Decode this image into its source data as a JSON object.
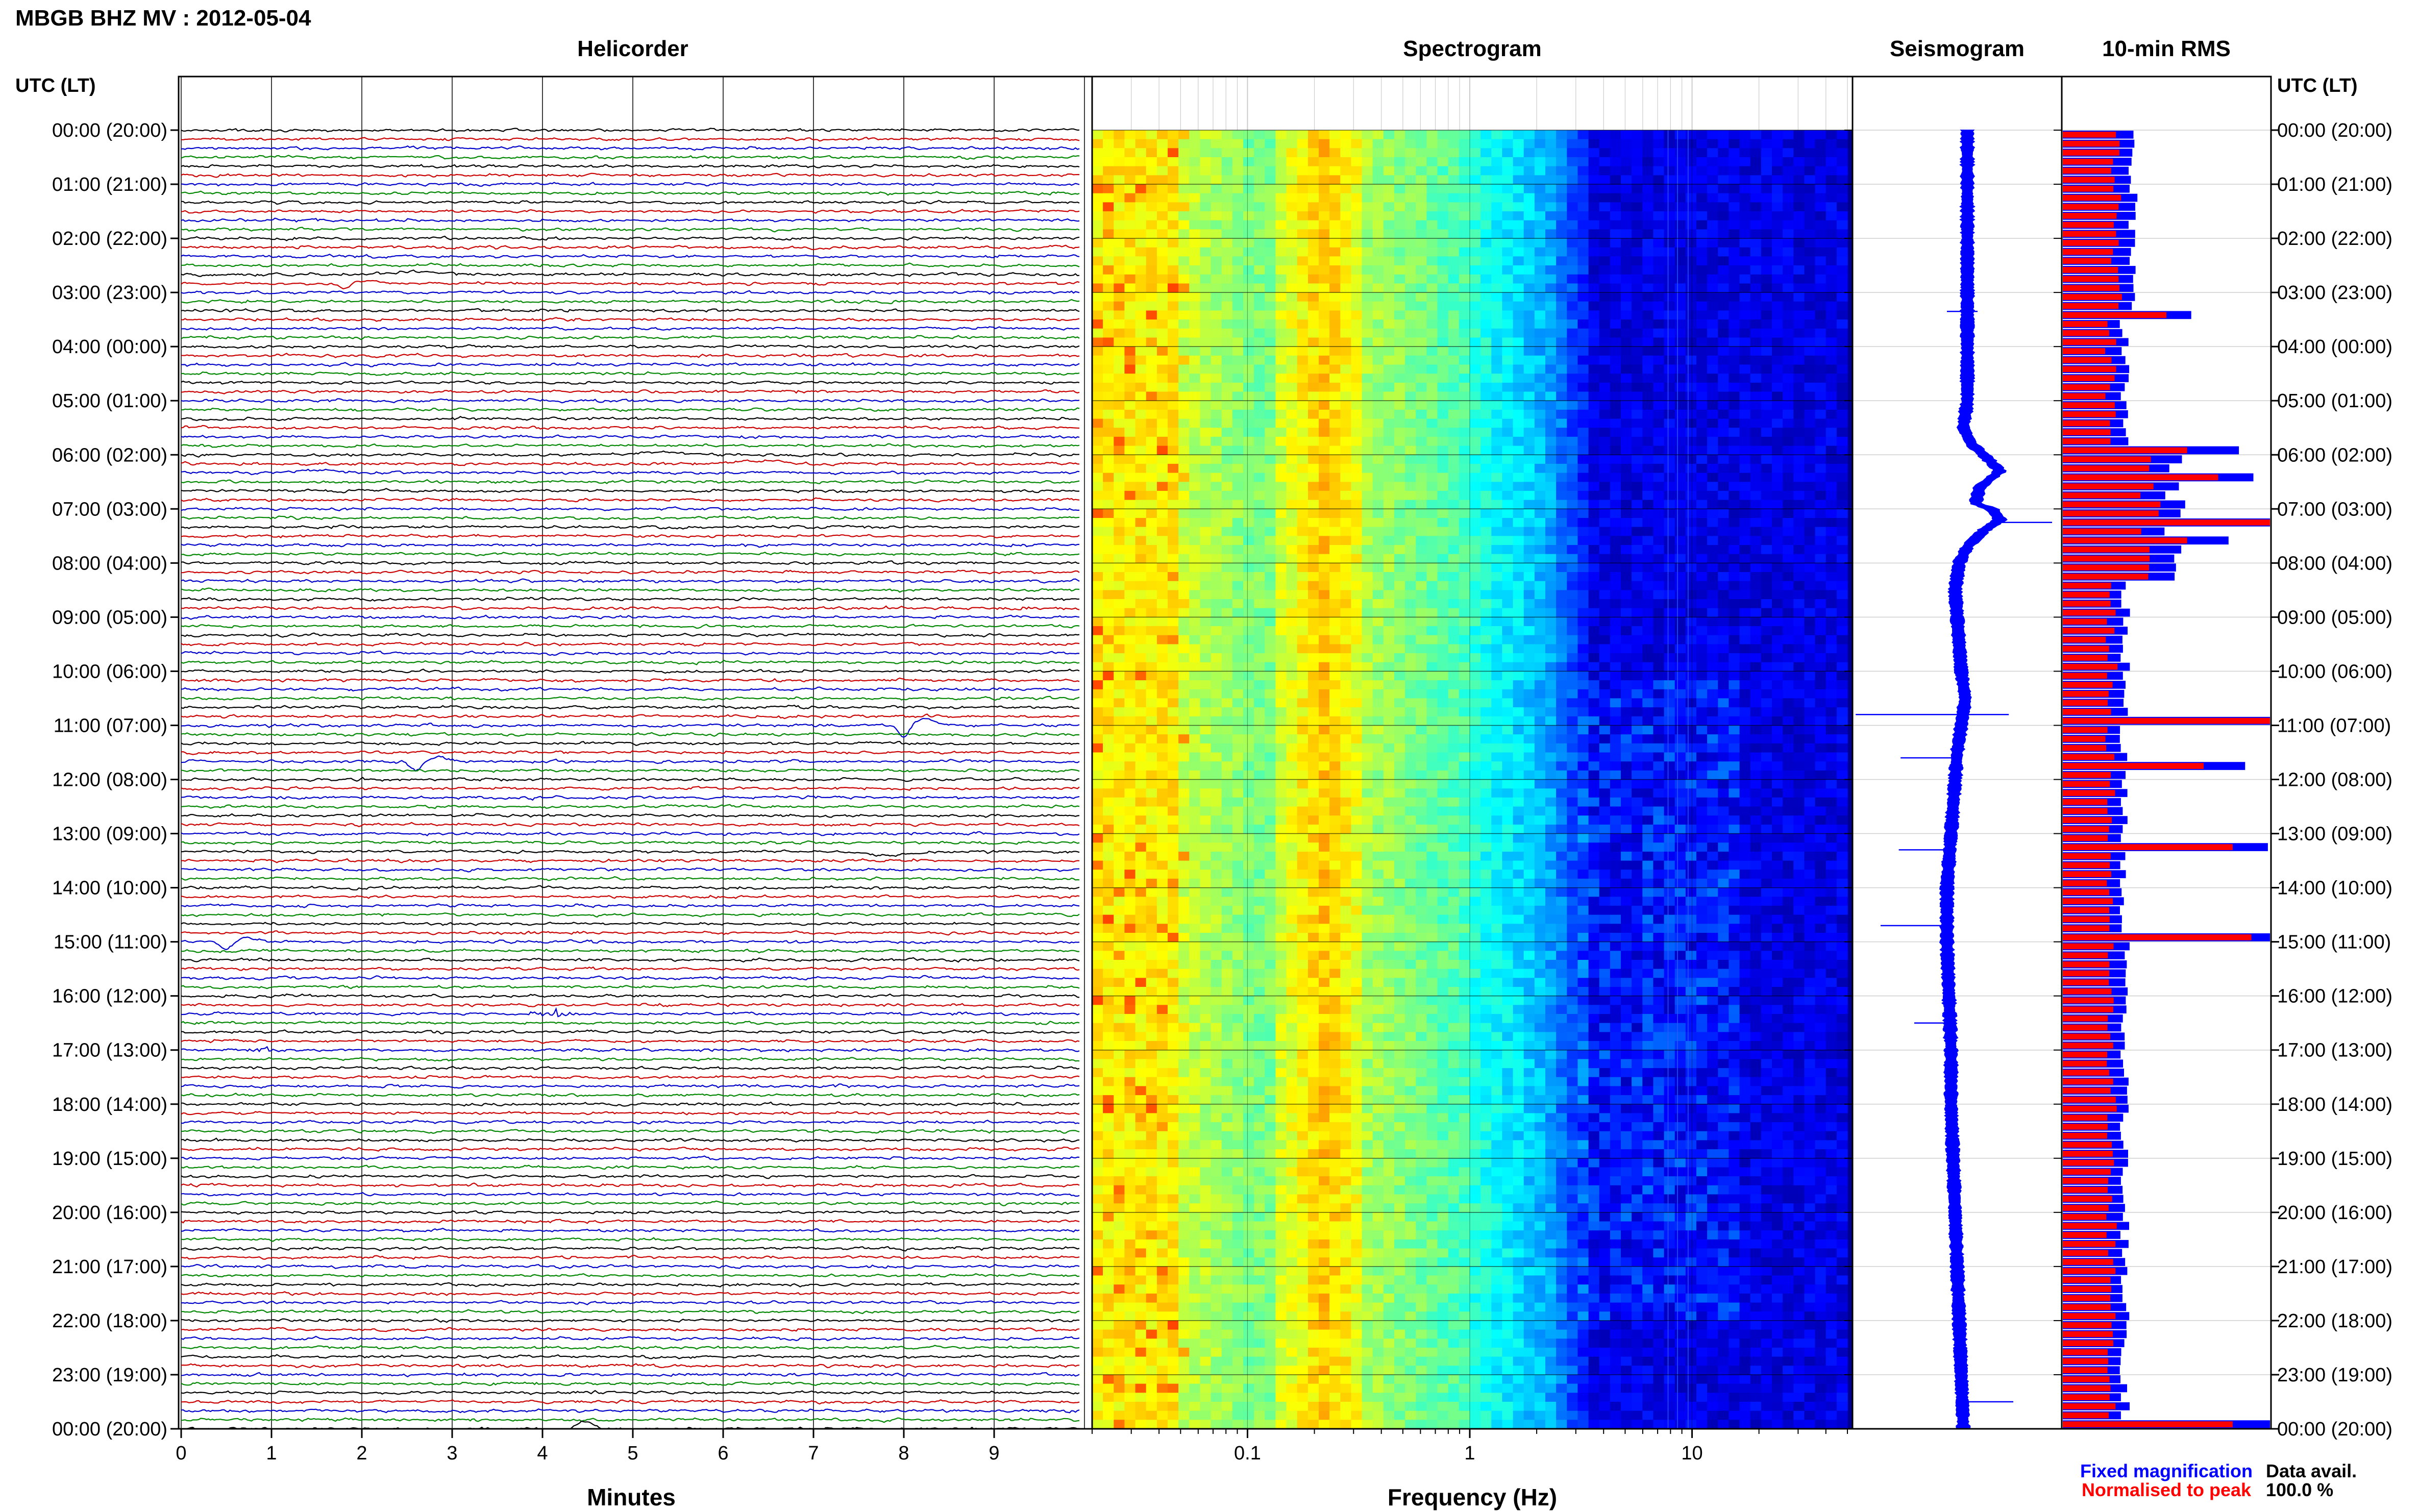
{
  "header": {
    "title": "MBGB BHZ MV : 2012-05-04",
    "left_axis_heading": "UTC (LT)",
    "right_axis_heading": "UTC (LT)"
  },
  "panels": {
    "helicorder": {
      "title": "Helicorder",
      "xlabel": "Minutes"
    },
    "spectrogram": {
      "title": "Spectrogram",
      "xlabel": "Frequency (Hz)"
    },
    "seismogram": {
      "title": "Seismogram"
    },
    "rms": {
      "title": "10-min RMS"
    }
  },
  "legend": {
    "fixed": "Fixed magnification",
    "normalised": "Normalised to peak",
    "fixed_color": "#0000ff",
    "normalised_color": "#ff0000",
    "data_avail_label": "Data avail.",
    "data_avail_value": "100.0 %"
  },
  "chart_data": {
    "type": "multi-panel seismic overview",
    "time_tick_labels": [
      "00:00 (20:00)",
      "01:00 (21:00)",
      "02:00 (22:00)",
      "03:00 (23:00)",
      "04:00 (00:00)",
      "05:00 (01:00)",
      "06:00 (02:00)",
      "07:00 (03:00)",
      "08:00 (04:00)",
      "09:00 (05:00)",
      "10:00 (06:00)",
      "11:00 (07:00)",
      "12:00 (08:00)",
      "13:00 (09:00)",
      "14:00 (10:00)",
      "15:00 (11:00)",
      "16:00 (12:00)",
      "17:00 (13:00)",
      "18:00 (14:00)",
      "19:00 (15:00)",
      "20:00 (16:00)",
      "21:00 (17:00)",
      "22:00 (18:00)",
      "23:00 (19:00)",
      "00:00 (20:00)"
    ],
    "helicorder": {
      "x_ticks": [
        "0",
        "1",
        "2",
        "3",
        "4",
        "5",
        "6",
        "7",
        "8",
        "9"
      ],
      "xlim": [
        0,
        10
      ],
      "traces_per_hour": 6,
      "trace_colors": [
        "#000000",
        "#cc0000",
        "#0000cc",
        "#008800"
      ],
      "events": [
        {
          "trace": 17,
          "minute": 1.8,
          "amp": 10,
          "kind": "spike"
        },
        {
          "trace": 16,
          "minute": 2.6,
          "amp": -6,
          "kind": "bump"
        },
        {
          "trace": 36,
          "minute": 5.3,
          "amp": -5,
          "kind": "bump"
        },
        {
          "trace": 37,
          "minute": 6.4,
          "amp": -7,
          "kind": "bump"
        },
        {
          "trace": 38,
          "minute": 1.5,
          "amp": -5,
          "kind": "bump"
        },
        {
          "trace": 66,
          "minute": 8.0,
          "amp": 24,
          "kind": "spike"
        },
        {
          "trace": 70,
          "minute": 2.6,
          "amp": 18,
          "kind": "spike"
        },
        {
          "trace": 80,
          "minute": 7.8,
          "amp": 8,
          "kind": "bump"
        },
        {
          "trace": 90,
          "minute": 0.5,
          "amp": 15,
          "kind": "spike"
        },
        {
          "trace": 98,
          "minute": 4.1,
          "amp": 8,
          "kind": "burst"
        },
        {
          "trace": 102,
          "minute": 0.9,
          "amp": 4,
          "kind": "burst"
        },
        {
          "trace": 144,
          "minute": 4.2,
          "amp": 28,
          "kind": "spike"
        }
      ]
    },
    "spectrogram": {
      "xscale": "log",
      "xlim": [
        0.02,
        50
      ],
      "x_ticks": [
        0.1,
        1,
        10
      ],
      "x_tick_labels": [
        "0.1",
        "1",
        "10"
      ]
    },
    "seismogram": {
      "y_pos": [
        0,
        0.5,
        1,
        1.5,
        2,
        2.5,
        3,
        3.3,
        3.5,
        4,
        4.5,
        5,
        5.5,
        5.8,
        6,
        6.3,
        6.6,
        6.9,
        7,
        7.2,
        7.4,
        7.7,
        8,
        8.5,
        9,
        9.5,
        10,
        10.5,
        11,
        11.5,
        12,
        12.5,
        13,
        13.5,
        14,
        14.5,
        15,
        16,
        17,
        18,
        19,
        20,
        21,
        22,
        23,
        24
      ],
      "x_offset": [
        0,
        0,
        0,
        0,
        0,
        0,
        0,
        0,
        0,
        0,
        0,
        0,
        -0.2,
        0.2,
        0.8,
        1.6,
        0.6,
        0.4,
        1.2,
        1.6,
        0.8,
        0.0,
        -0.4,
        -0.6,
        -0.5,
        -0.4,
        -0.3,
        -0.1,
        -0.3,
        -0.5,
        -0.6,
        -0.7,
        -0.8,
        -0.9,
        -1.0,
        -1.0,
        -1.0,
        -0.9,
        -0.8,
        -0.8,
        -0.7,
        -0.6,
        -0.5,
        -0.4,
        -0.3,
        -0.2
      ],
      "spikes": [
        {
          "hour": 3.35,
          "left": 0.4,
          "right": 0.1
        },
        {
          "hour": 7.25,
          "left": 0,
          "right": 1.0
        },
        {
          "hour": 10.8,
          "left": 2.1,
          "right": 0.8
        },
        {
          "hour": 11.6,
          "left": 1.1,
          "right": 0
        },
        {
          "hour": 13.3,
          "left": 1.0,
          "right": 0
        },
        {
          "hour": 14.7,
          "left": 1.3,
          "right": 0
        },
        {
          "hour": 16.5,
          "left": 0.7,
          "right": 0
        },
        {
          "hour": 23.5,
          "left": 0,
          "right": 0.9
        }
      ]
    },
    "rms": {
      "bins_per_hour": 6,
      "peak_bins": [
        {
          "bin": 20,
          "fixed": 0.62,
          "normalised": 0.5
        },
        {
          "bin": 35,
          "fixed": 0.85,
          "normalised": 0.6
        },
        {
          "bin": 38,
          "fixed": 0.92,
          "normalised": 0.75
        },
        {
          "bin": 43,
          "fixed": 1.0,
          "normalised": 1.0
        },
        {
          "bin": 45,
          "fixed": 0.8,
          "normalised": 0.6
        },
        {
          "bin": 65,
          "fixed": 1.0,
          "normalised": 1.0
        },
        {
          "bin": 70,
          "fixed": 0.88,
          "normalised": 0.68
        },
        {
          "bin": 79,
          "fixed": 0.99,
          "normalised": 0.82
        },
        {
          "bin": 89,
          "fixed": 1.0,
          "normalised": 0.91
        },
        {
          "bin": 143,
          "fixed": 1.0,
          "normalised": 0.82
        }
      ],
      "baseline_fixed": 0.3,
      "baseline_normalised": 0.22
    }
  }
}
